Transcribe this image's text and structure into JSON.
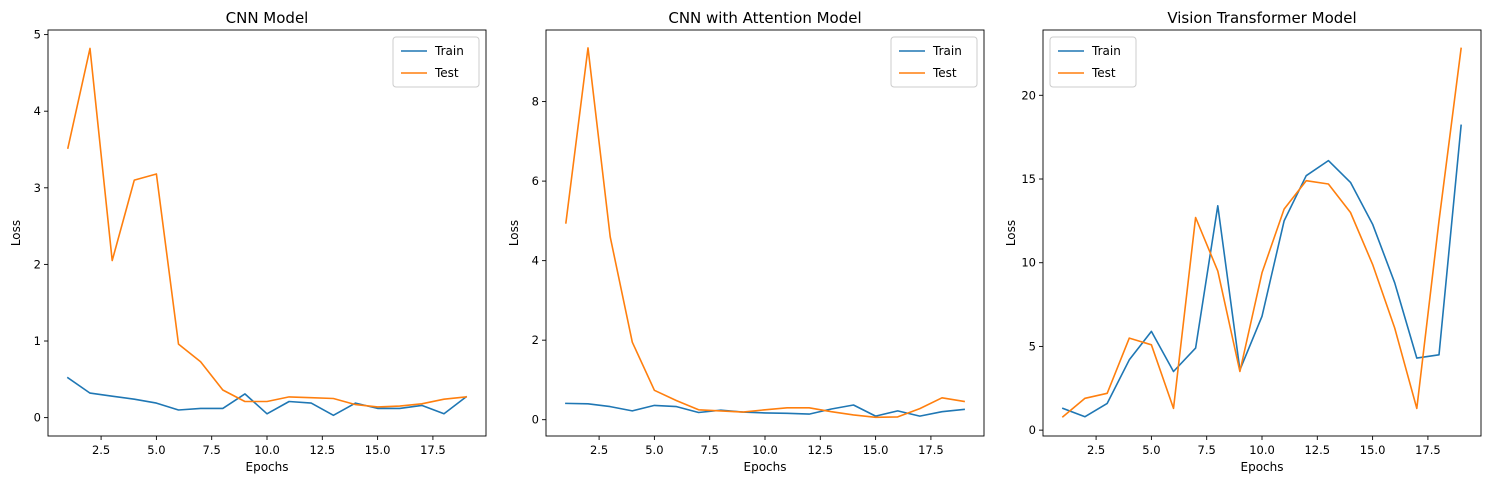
{
  "colors": {
    "train": "#1f77b4",
    "test": "#ff7f0e"
  },
  "chart_data": [
    {
      "type": "line",
      "title": "CNN Model",
      "xlabel": "Epochs",
      "ylabel": "Loss",
      "xlim": [
        0.1,
        19.9
      ],
      "ylim": [
        -0.24,
        5.06
      ],
      "xticks": [
        2.5,
        5.0,
        7.5,
        10.0,
        12.5,
        15.0,
        17.5
      ],
      "xtick_labels": [
        "2.5",
        "5.0",
        "7.5",
        "10.0",
        "12.5",
        "15.0",
        "17.5"
      ],
      "yticks": [
        0,
        1,
        2,
        3,
        4,
        5
      ],
      "ytick_labels": [
        "0",
        "1",
        "2",
        "3",
        "4",
        "5"
      ],
      "legend": "top-right",
      "grid": false,
      "x": [
        1,
        2,
        3,
        4,
        5,
        6,
        7,
        8,
        9,
        10,
        11,
        12,
        13,
        14,
        15,
        16,
        17,
        18,
        19
      ],
      "series": [
        {
          "name": "Train",
          "values": [
            0.52,
            0.32,
            0.28,
            0.24,
            0.19,
            0.1,
            0.12,
            0.12,
            0.31,
            0.05,
            0.21,
            0.19,
            0.03,
            0.19,
            0.12,
            0.12,
            0.16,
            0.05,
            0.27
          ]
        },
        {
          "name": "Test",
          "values": [
            3.52,
            4.82,
            2.05,
            3.1,
            3.18,
            0.96,
            0.73,
            0.36,
            0.21,
            0.21,
            0.27,
            0.26,
            0.25,
            0.17,
            0.14,
            0.15,
            0.18,
            0.24,
            0.27
          ]
        }
      ]
    },
    {
      "type": "line",
      "title": "CNN with Attention Model",
      "xlabel": "Epochs",
      "ylabel": "Loss",
      "xlim": [
        0.1,
        19.9
      ],
      "ylim": [
        -0.41,
        9.8
      ],
      "xticks": [
        2.5,
        5.0,
        7.5,
        10.0,
        12.5,
        15.0,
        17.5
      ],
      "xtick_labels": [
        "2.5",
        "5.0",
        "7.5",
        "10.0",
        "12.5",
        "15.0",
        "17.5"
      ],
      "yticks": [
        0,
        2,
        4,
        6,
        8
      ],
      "ytick_labels": [
        "0",
        "2",
        "4",
        "6",
        "8"
      ],
      "legend": "top-right",
      "grid": false,
      "x": [
        1,
        2,
        3,
        4,
        5,
        6,
        7,
        8,
        9,
        10,
        11,
        12,
        13,
        14,
        15,
        16,
        17,
        18,
        19
      ],
      "series": [
        {
          "name": "Train",
          "values": [
            0.41,
            0.4,
            0.33,
            0.22,
            0.36,
            0.33,
            0.18,
            0.24,
            0.19,
            0.17,
            0.16,
            0.14,
            0.27,
            0.37,
            0.09,
            0.22,
            0.09,
            0.2,
            0.26
          ]
        },
        {
          "name": "Test",
          "values": [
            4.95,
            9.35,
            4.6,
            1.95,
            0.74,
            0.48,
            0.25,
            0.22,
            0.19,
            0.25,
            0.3,
            0.3,
            0.2,
            0.12,
            0.06,
            0.07,
            0.28,
            0.55,
            0.46
          ]
        }
      ]
    },
    {
      "type": "line",
      "title": "Vision Transformer Model",
      "xlabel": "Epochs",
      "ylabel": "Loss",
      "xlim": [
        0.1,
        19.9
      ],
      "ylim": [
        -0.35,
        23.9
      ],
      "xticks": [
        2.5,
        5.0,
        7.5,
        10.0,
        12.5,
        15.0,
        17.5
      ],
      "xtick_labels": [
        "2.5",
        "5.0",
        "7.5",
        "10.0",
        "12.5",
        "15.0",
        "17.5"
      ],
      "yticks": [
        0,
        5,
        10,
        15,
        20
      ],
      "ytick_labels": [
        "0",
        "5",
        "10",
        "15",
        "20"
      ],
      "legend": "top-left",
      "grid": false,
      "x": [
        1,
        2,
        3,
        4,
        5,
        6,
        7,
        8,
        9,
        10,
        11,
        12,
        13,
        14,
        15,
        16,
        17,
        18,
        19
      ],
      "series": [
        {
          "name": "Train",
          "values": [
            1.3,
            0.8,
            1.6,
            4.2,
            5.9,
            3.5,
            4.9,
            13.4,
            3.6,
            6.8,
            12.5,
            15.2,
            16.1,
            14.8,
            12.3,
            8.8,
            4.3,
            4.5,
            18.2
          ]
        },
        {
          "name": "Test",
          "values": [
            0.8,
            1.9,
            2.2,
            5.5,
            5.1,
            1.3,
            12.7,
            9.5,
            3.5,
            9.4,
            13.2,
            14.9,
            14.7,
            13.0,
            9.9,
            6.1,
            1.3,
            12.5,
            22.8
          ]
        }
      ]
    }
  ]
}
